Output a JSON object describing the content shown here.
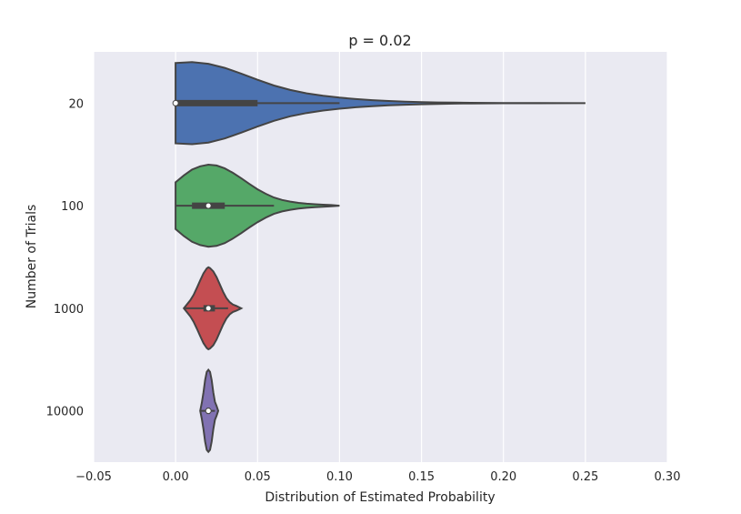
{
  "chart_data": {
    "type": "violin",
    "title": "p = 0.02",
    "xlabel": "Distribution of Estimated Probability",
    "ylabel": "Number of Trials",
    "xlim": [
      -0.05,
      0.3
    ],
    "x_ticks": [
      -0.05,
      0.0,
      0.05,
      0.1,
      0.15,
      0.2,
      0.25,
      0.3
    ],
    "x_tick_labels": [
      "−0.05",
      "0.00",
      "0.05",
      "0.10",
      "0.15",
      "0.20",
      "0.25",
      "0.30"
    ],
    "grid": true,
    "categories": [
      "20",
      "100",
      "1000",
      "10000"
    ],
    "series": [
      {
        "category": "20",
        "color": "#4c72b0",
        "min": 0.0,
        "q1": 0.0,
        "median": 0.0,
        "q3": 0.05,
        "whisker_high": 0.1,
        "max": 0.25,
        "density": [
          [
            0.0,
            0.98
          ],
          [
            0.01,
            1.0
          ],
          [
            0.02,
            0.96
          ],
          [
            0.03,
            0.86
          ],
          [
            0.04,
            0.72
          ],
          [
            0.05,
            0.57
          ],
          [
            0.06,
            0.43
          ],
          [
            0.07,
            0.32
          ],
          [
            0.08,
            0.24
          ],
          [
            0.09,
            0.18
          ],
          [
            0.1,
            0.135
          ],
          [
            0.11,
            0.1
          ],
          [
            0.12,
            0.073
          ],
          [
            0.13,
            0.053
          ],
          [
            0.14,
            0.038
          ],
          [
            0.15,
            0.027
          ],
          [
            0.16,
            0.018
          ],
          [
            0.17,
            0.012
          ],
          [
            0.18,
            0.008
          ],
          [
            0.19,
            0.005
          ],
          [
            0.2,
            0.003
          ],
          [
            0.22,
            0.002
          ],
          [
            0.25,
            0.0
          ]
        ]
      },
      {
        "category": "100",
        "color": "#55a868",
        "min": 0.0,
        "q1": 0.01,
        "median": 0.02,
        "q3": 0.03,
        "whisker_high": 0.06,
        "max": 0.1,
        "density": [
          [
            0.0,
            0.57
          ],
          [
            0.005,
            0.74
          ],
          [
            0.01,
            0.88
          ],
          [
            0.015,
            0.96
          ],
          [
            0.02,
            1.0
          ],
          [
            0.025,
            0.98
          ],
          [
            0.03,
            0.91
          ],
          [
            0.035,
            0.8
          ],
          [
            0.04,
            0.67
          ],
          [
            0.045,
            0.53
          ],
          [
            0.05,
            0.4
          ],
          [
            0.055,
            0.29
          ],
          [
            0.06,
            0.2
          ],
          [
            0.065,
            0.14
          ],
          [
            0.07,
            0.1
          ],
          [
            0.075,
            0.07
          ],
          [
            0.08,
            0.05
          ],
          [
            0.085,
            0.035
          ],
          [
            0.09,
            0.025
          ],
          [
            0.095,
            0.015
          ],
          [
            0.1,
            0.0
          ]
        ]
      },
      {
        "category": "1000",
        "color": "#c44e52",
        "min": 0.005,
        "q1": 0.017,
        "median": 0.02,
        "q3": 0.024,
        "whisker_high": 0.032,
        "max": 0.04,
        "density": [
          [
            0.005,
            0.0
          ],
          [
            0.007,
            0.1
          ],
          [
            0.009,
            0.2
          ],
          [
            0.011,
            0.33
          ],
          [
            0.013,
            0.5
          ],
          [
            0.015,
            0.68
          ],
          [
            0.017,
            0.85
          ],
          [
            0.019,
            0.97
          ],
          [
            0.02,
            1.0
          ],
          [
            0.021,
            0.98
          ],
          [
            0.023,
            0.9
          ],
          [
            0.025,
            0.76
          ],
          [
            0.027,
            0.58
          ],
          [
            0.029,
            0.4
          ],
          [
            0.031,
            0.25
          ],
          [
            0.033,
            0.15
          ],
          [
            0.035,
            0.09
          ],
          [
            0.037,
            0.06
          ],
          [
            0.039,
            0.02
          ],
          [
            0.04,
            0.0
          ]
        ]
      },
      {
        "category": "10000",
        "color": "#8172b2",
        "min": 0.015,
        "q1": 0.019,
        "median": 0.02,
        "q3": 0.021,
        "whisker_high": 0.024,
        "max": 0.026,
        "density": [
          [
            0.015,
            0.0
          ],
          [
            0.016,
            0.2
          ],
          [
            0.017,
            0.45
          ],
          [
            0.018,
            0.75
          ],
          [
            0.019,
            0.95
          ],
          [
            0.02,
            1.0
          ],
          [
            0.021,
            0.95
          ],
          [
            0.022,
            0.75
          ],
          [
            0.023,
            0.45
          ],
          [
            0.024,
            0.22
          ],
          [
            0.025,
            0.12
          ],
          [
            0.026,
            0.0
          ]
        ]
      }
    ]
  }
}
